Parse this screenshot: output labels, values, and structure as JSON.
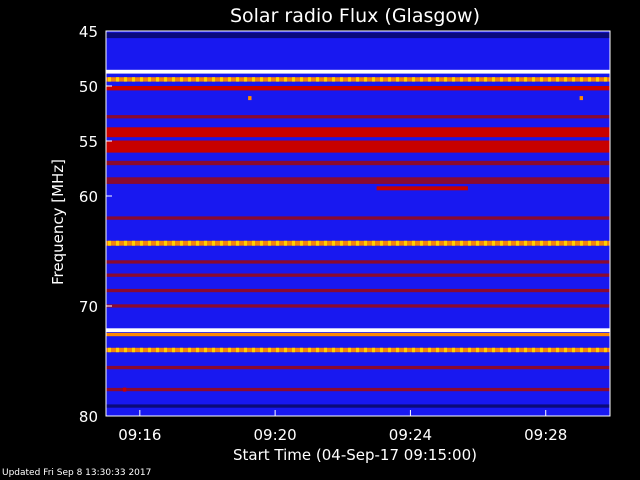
{
  "footer": {
    "updated": "Updated Fri Sep  8 13:30:33 2017"
  },
  "chart_data": {
    "type": "heatmap",
    "title": "Solar radio Flux (Glasgow)",
    "xlabel": "Start Time (04-Sep-17 09:15:00)",
    "ylabel": "Frequency [MHz]",
    "x_ticks": [
      "09:16",
      "09:20",
      "09:24",
      "09:28"
    ],
    "x_tick_minutes": [
      1,
      5,
      9,
      13
    ],
    "x_range_minutes": [
      0,
      14.9
    ],
    "y_ticks": [
      45,
      50,
      55,
      60,
      70,
      80
    ],
    "ylim": [
      45,
      80
    ],
    "y_reversed": true,
    "colors": {
      "background": "#1818f0",
      "dark_band": "#0a0a7a",
      "red": "#c80000",
      "dark_red": "#8a0a30",
      "orange": "#ff8a00",
      "yellow": "#ffd000",
      "white": "#ffffff"
    },
    "bands": [
      {
        "freq": 45.4,
        "width": 0.5,
        "color": "dark_band"
      },
      {
        "freq": 48.7,
        "width": 0.35,
        "color": "white"
      },
      {
        "freq": 49.4,
        "width": 0.4,
        "color": "orange",
        "dashed": true
      },
      {
        "freq": 50.2,
        "width": 0.4,
        "color": "red"
      },
      {
        "freq": 52.8,
        "width": 0.3,
        "color": "dark_red"
      },
      {
        "freq": 54.2,
        "width": 0.9,
        "color": "red"
      },
      {
        "freq": 55.5,
        "width": 1.1,
        "color": "red"
      },
      {
        "freq": 57.0,
        "width": 0.4,
        "color": "dark_red"
      },
      {
        "freq": 58.6,
        "width": 0.6,
        "color": "dark_red"
      },
      {
        "freq": 62.0,
        "width": 0.3,
        "color": "dark_red"
      },
      {
        "freq": 64.3,
        "width": 0.45,
        "color": "orange",
        "dashed": true
      },
      {
        "freq": 66.0,
        "width": 0.3,
        "color": "dark_red"
      },
      {
        "freq": 67.2,
        "width": 0.3,
        "color": "dark_red"
      },
      {
        "freq": 68.6,
        "width": 0.3,
        "color": "dark_red"
      },
      {
        "freq": 70.0,
        "width": 0.3,
        "color": "dark_red"
      },
      {
        "freq": 72.2,
        "width": 0.35,
        "color": "white"
      },
      {
        "freq": 72.6,
        "width": 0.3,
        "color": "orange"
      },
      {
        "freq": 74.0,
        "width": 0.4,
        "color": "orange",
        "dashed": true
      },
      {
        "freq": 75.6,
        "width": 0.3,
        "color": "dark_red"
      },
      {
        "freq": 77.6,
        "width": 0.3,
        "color": "dark_red"
      },
      {
        "freq": 79.1,
        "width": 0.3,
        "color": "dark_band"
      }
    ],
    "bursts": [
      {
        "freq": 59.3,
        "start_min": 8.0,
        "end_min": 10.7,
        "color": "red"
      },
      {
        "freq": 51.1,
        "start_min": 4.2,
        "end_min": 4.3,
        "color": "orange"
      },
      {
        "freq": 51.1,
        "start_min": 14.0,
        "end_min": 14.1,
        "color": "orange"
      },
      {
        "freq": 77.6,
        "start_min": 0.5,
        "end_min": 0.6,
        "color": "red"
      }
    ]
  }
}
